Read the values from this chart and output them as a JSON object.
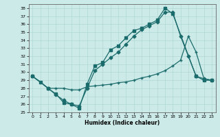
{
  "xlabel": "Humidex (Indice chaleur)",
  "bg_color": "#cceae8",
  "grid_color": "#b0d8d5",
  "line_color": "#1a6b6b",
  "xlim": [
    -0.5,
    23.5
  ],
  "ylim": [
    25,
    38.5
  ],
  "xticks": [
    0,
    1,
    2,
    3,
    4,
    5,
    6,
    7,
    8,
    9,
    10,
    11,
    12,
    13,
    14,
    15,
    16,
    17,
    18,
    19,
    20,
    21,
    22,
    23
  ],
  "yticks": [
    25,
    26,
    27,
    28,
    29,
    30,
    31,
    32,
    33,
    34,
    35,
    36,
    37,
    38
  ],
  "s1_x": [
    0,
    1,
    2,
    3,
    4,
    5,
    6,
    7,
    8,
    9,
    10,
    11,
    12,
    13,
    14,
    15,
    16,
    17,
    18,
    21,
    22,
    23
  ],
  "s1_y": [
    29.5,
    28.8,
    28.0,
    27.3,
    26.2,
    26.0,
    25.5,
    28.5,
    30.8,
    31.2,
    32.8,
    33.3,
    34.3,
    35.2,
    35.5,
    36.0,
    36.5,
    38.0,
    37.3,
    29.5,
    29.0,
    29.0
  ],
  "s2_x": [
    0,
    2,
    3,
    4,
    5,
    6,
    7,
    8,
    9,
    10,
    11,
    12,
    13,
    14,
    15,
    16,
    17,
    18,
    19,
    20,
    21,
    22,
    23
  ],
  "s2_y": [
    29.5,
    28.0,
    27.2,
    26.5,
    26.0,
    25.8,
    28.0,
    30.2,
    31.0,
    31.8,
    32.5,
    33.5,
    34.5,
    35.3,
    35.8,
    36.3,
    37.5,
    37.5,
    34.5,
    32.0,
    29.5,
    29.2,
    29.0
  ],
  "s3_x": [
    0,
    1,
    2,
    3,
    4,
    5,
    6,
    7,
    8,
    9,
    10,
    11,
    12,
    13,
    14,
    15,
    16,
    17,
    18,
    19,
    20,
    21,
    22,
    23
  ],
  "s3_y": [
    29.5,
    28.8,
    28.0,
    28.0,
    28.0,
    27.8,
    27.8,
    28.2,
    28.3,
    28.4,
    28.5,
    28.7,
    28.8,
    29.0,
    29.3,
    29.5,
    29.8,
    30.2,
    30.8,
    31.5,
    34.5,
    32.5,
    29.2,
    29.0
  ]
}
